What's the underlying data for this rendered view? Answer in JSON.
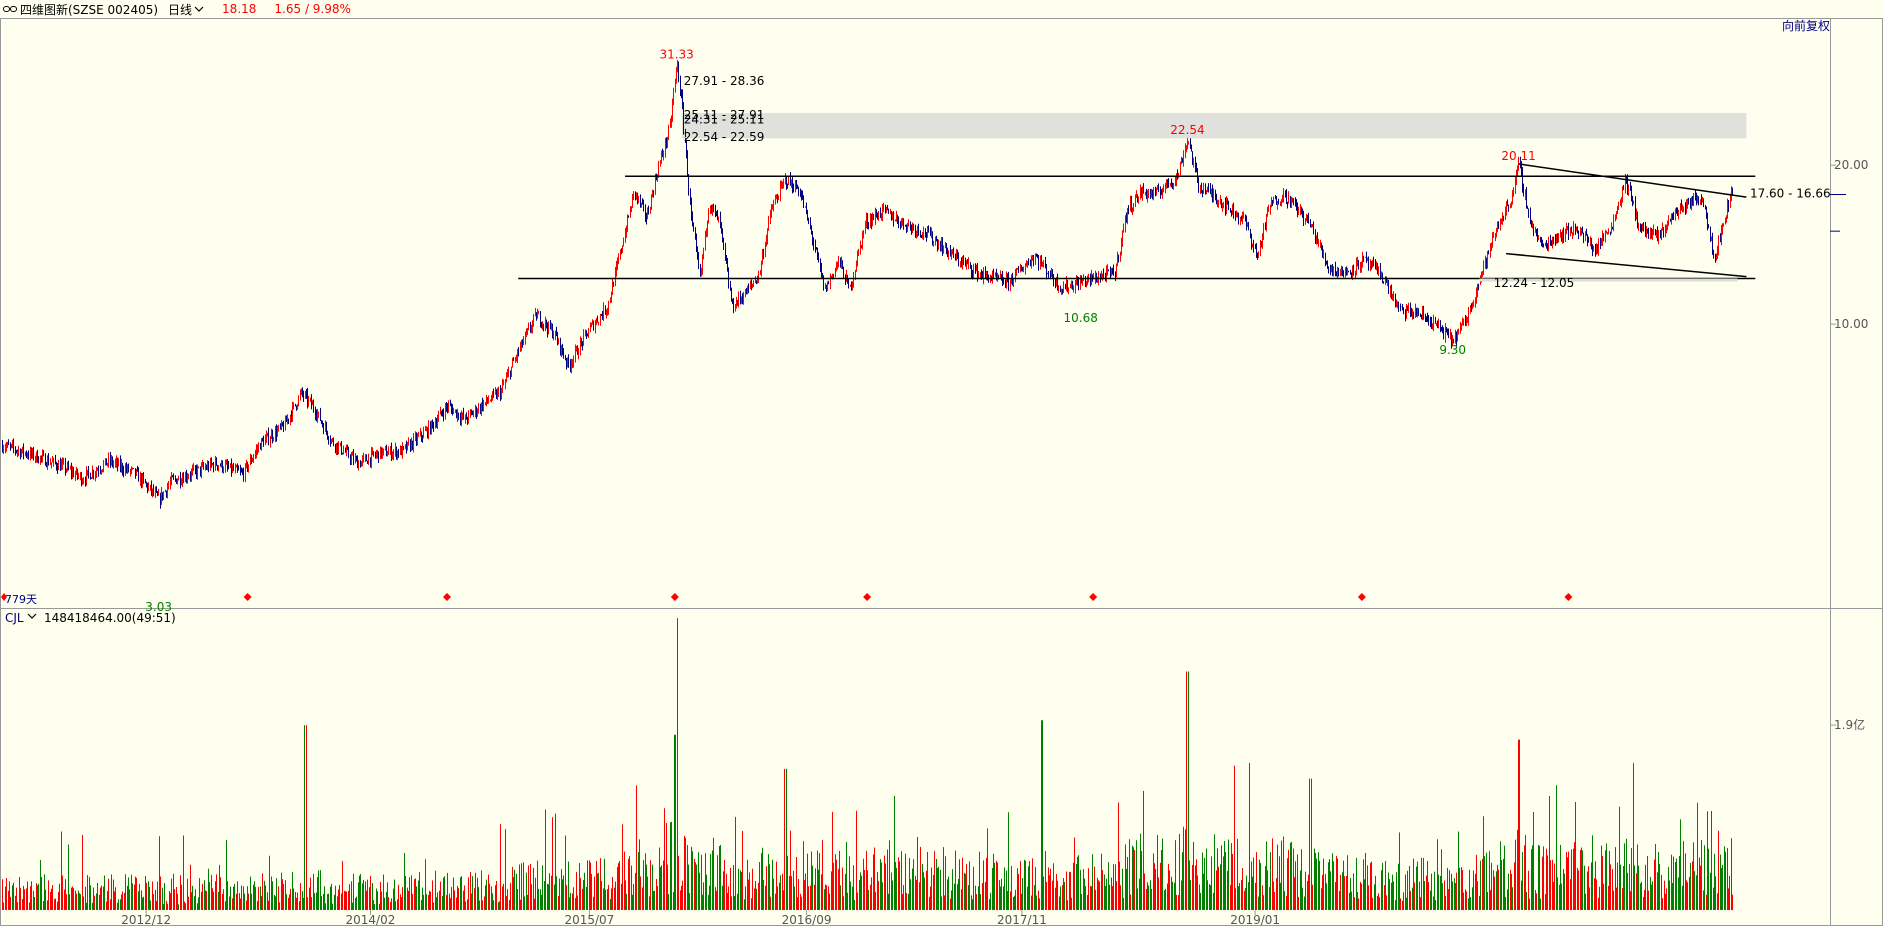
{
  "header": {
    "stock_name": "四维图新(SZSE 002405)",
    "period": "日线",
    "price": "18.18",
    "change": "1.65 / 9.98%"
  },
  "adjust_label": "向前复权",
  "days_label": "779天",
  "volume_indicator": {
    "name": "CJL",
    "value": "148418464.00(49:51)"
  },
  "chart_data": [
    {
      "type": "candlestick",
      "title": "四维图新(SZSE 002405) 日线",
      "x_tick_labels": [
        "2012/12",
        "2014/02",
        "2015/07",
        "2016/09",
        "2017/11",
        "2019/01"
      ],
      "y_tick_labels": [
        "20.00",
        "10.00"
      ],
      "y_scale": "log",
      "y_range": [
        2.9,
        38
      ],
      "close_path": [
        [
          0,
          5.9
        ],
        [
          0.02,
          5.6
        ],
        [
          0.035,
          5.35
        ],
        [
          0.045,
          5.1
        ],
        [
          0.06,
          5.5
        ],
        [
          0.075,
          5.2
        ],
        [
          0.088,
          4.65
        ],
        [
          0.095,
          5.05
        ],
        [
          0.105,
          5.2
        ],
        [
          0.12,
          5.45
        ],
        [
          0.135,
          5.2
        ],
        [
          0.145,
          5.95
        ],
        [
          0.158,
          6.4
        ],
        [
          0.168,
          7.4
        ],
        [
          0.175,
          6.95
        ],
        [
          0.185,
          6.0
        ],
        [
          0.2,
          5.45
        ],
        [
          0.212,
          5.7
        ],
        [
          0.225,
          5.75
        ],
        [
          0.24,
          6.35
        ],
        [
          0.25,
          7.0
        ],
        [
          0.26,
          6.6
        ],
        [
          0.27,
          7.05
        ],
        [
          0.28,
          7.45
        ],
        [
          0.29,
          8.9
        ],
        [
          0.3,
          10.4
        ],
        [
          0.31,
          9.6
        ],
        [
          0.318,
          8.35
        ],
        [
          0.33,
          9.8
        ],
        [
          0.34,
          10.8
        ],
        [
          0.345,
          12.7
        ],
        [
          0.355,
          17.8
        ],
        [
          0.362,
          15.9
        ],
        [
          0.368,
          19.5
        ],
        [
          0.375,
          23.5
        ],
        [
          0.379,
          31.33
        ],
        [
          0.382,
          25.5
        ],
        [
          0.387,
          15.8
        ],
        [
          0.392,
          12.2
        ],
        [
          0.397,
          17.0
        ],
        [
          0.403,
          15.5
        ],
        [
          0.41,
          10.8
        ],
        [
          0.418,
          11.5
        ],
        [
          0.425,
          12.4
        ],
        [
          0.432,
          16.5
        ],
        [
          0.44,
          18.8
        ],
        [
          0.448,
          17.9
        ],
        [
          0.455,
          14.6
        ],
        [
          0.462,
          11.6
        ],
        [
          0.47,
          13.2
        ],
        [
          0.476,
          11.6
        ],
        [
          0.485,
          15.6
        ],
        [
          0.495,
          16.4
        ],
        [
          0.505,
          15.6
        ],
        [
          0.52,
          14.8
        ],
        [
          0.535,
          13.4
        ],
        [
          0.55,
          12.4
        ],
        [
          0.565,
          12.0
        ],
        [
          0.58,
          13.5
        ],
        [
          0.595,
          11.7
        ],
        [
          0.605,
          12.0
        ],
        [
          0.618,
          12.35
        ],
        [
          0.625,
          12.5
        ],
        [
          0.632,
          16.5
        ],
        [
          0.64,
          17.8
        ],
        [
          0.648,
          17.6
        ],
        [
          0.655,
          18.5
        ],
        [
          0.66,
          19.0
        ],
        [
          0.666,
          22.54
        ],
        [
          0.672,
          18.3
        ],
        [
          0.68,
          17.6
        ],
        [
          0.69,
          16.5
        ],
        [
          0.698,
          15.7
        ],
        [
          0.705,
          13.4
        ],
        [
          0.712,
          16.8
        ],
        [
          0.72,
          17.6
        ],
        [
          0.728,
          16.5
        ],
        [
          0.735,
          15.4
        ],
        [
          0.745,
          12.8
        ],
        [
          0.755,
          12.5
        ],
        [
          0.765,
          13.2
        ],
        [
          0.775,
          12.4
        ],
        [
          0.785,
          10.6
        ],
        [
          0.795,
          10.5
        ],
        [
          0.805,
          10.0
        ],
        [
          0.815,
          9.3
        ],
        [
          0.823,
          10.3
        ],
        [
          0.83,
          12.2
        ],
        [
          0.84,
          15.3
        ],
        [
          0.848,
          17.4
        ],
        [
          0.852,
          20.11
        ],
        [
          0.858,
          15.8
        ],
        [
          0.865,
          14.0
        ],
        [
          0.875,
          14.8
        ],
        [
          0.885,
          15.2
        ],
        [
          0.895,
          13.8
        ],
        [
          0.905,
          15.6
        ],
        [
          0.912,
          18.8
        ],
        [
          0.92,
          15.2
        ],
        [
          0.93,
          14.6
        ],
        [
          0.94,
          16.3
        ],
        [
          0.948,
          17.0
        ],
        [
          0.955,
          17.5
        ],
        [
          0.962,
          13.4
        ],
        [
          0.968,
          16.0
        ],
        [
          0.972,
          18.18
        ]
      ],
      "annotations": [
        {
          "label": "31.33",
          "t": 0.379,
          "v": 31.33,
          "color": "#ff0000",
          "kind": "high"
        },
        {
          "label": "22.54",
          "t": 0.666,
          "v": 22.54,
          "color": "#ff0000",
          "kind": "high"
        },
        {
          "label": "20.11",
          "t": 0.852,
          "v": 20.11,
          "color": "#ff0000",
          "kind": "high"
        },
        {
          "label": "3.03",
          "t": 0.088,
          "v": 3.03,
          "color": "#008000",
          "kind": "low"
        },
        {
          "label": "10.68",
          "t": 0.606,
          "v": 10.68,
          "color": "#008000",
          "kind": "low"
        },
        {
          "label": "9.30",
          "t": 0.815,
          "v": 9.3,
          "color": "#008000",
          "kind": "low"
        }
      ],
      "shaded_band": {
        "low": 22.59,
        "high": 25.11
      },
      "range_labels": [
        {
          "label": "27.91 - 28.36",
          "v": 27.91
        },
        {
          "label": "25.11 - 27.91",
          "v": 25.11
        },
        {
          "label": "24.31 - 25.11",
          "v": 24.31
        },
        {
          "label": "22.54 - 22.59",
          "v": 22.54
        },
        {
          "label": "17.60 - 16.66",
          "v": 17.6
        },
        {
          "label": "12.24 - 12.05",
          "v": 12.24
        }
      ],
      "horizontal_lines": [
        {
          "v": 19.06,
          "from": 0.35,
          "to": 0.985
        },
        {
          "v": 12.2,
          "from": 0.29,
          "to": 0.985
        }
      ],
      "trend_lines": [
        {
          "from": [
            0.852,
            20.11
          ],
          "to": [
            0.98,
            17.4
          ]
        },
        {
          "from": [
            0.845,
            13.6
          ],
          "to": [
            0.98,
            12.3
          ]
        }
      ],
      "event_markers": [
        0.138,
        0.25,
        0.378,
        0.486,
        0.613,
        0.764,
        0.88
      ]
    },
    {
      "type": "bar",
      "title": "CJL",
      "y_tick_labels": [
        "1.9亿"
      ],
      "y_range": [
        0,
        300000000
      ],
      "series": [
        {
          "name": "volume",
          "colors": [
            "#ff0000",
            "#008000"
          ]
        }
      ],
      "last_value": 148418464
    }
  ]
}
